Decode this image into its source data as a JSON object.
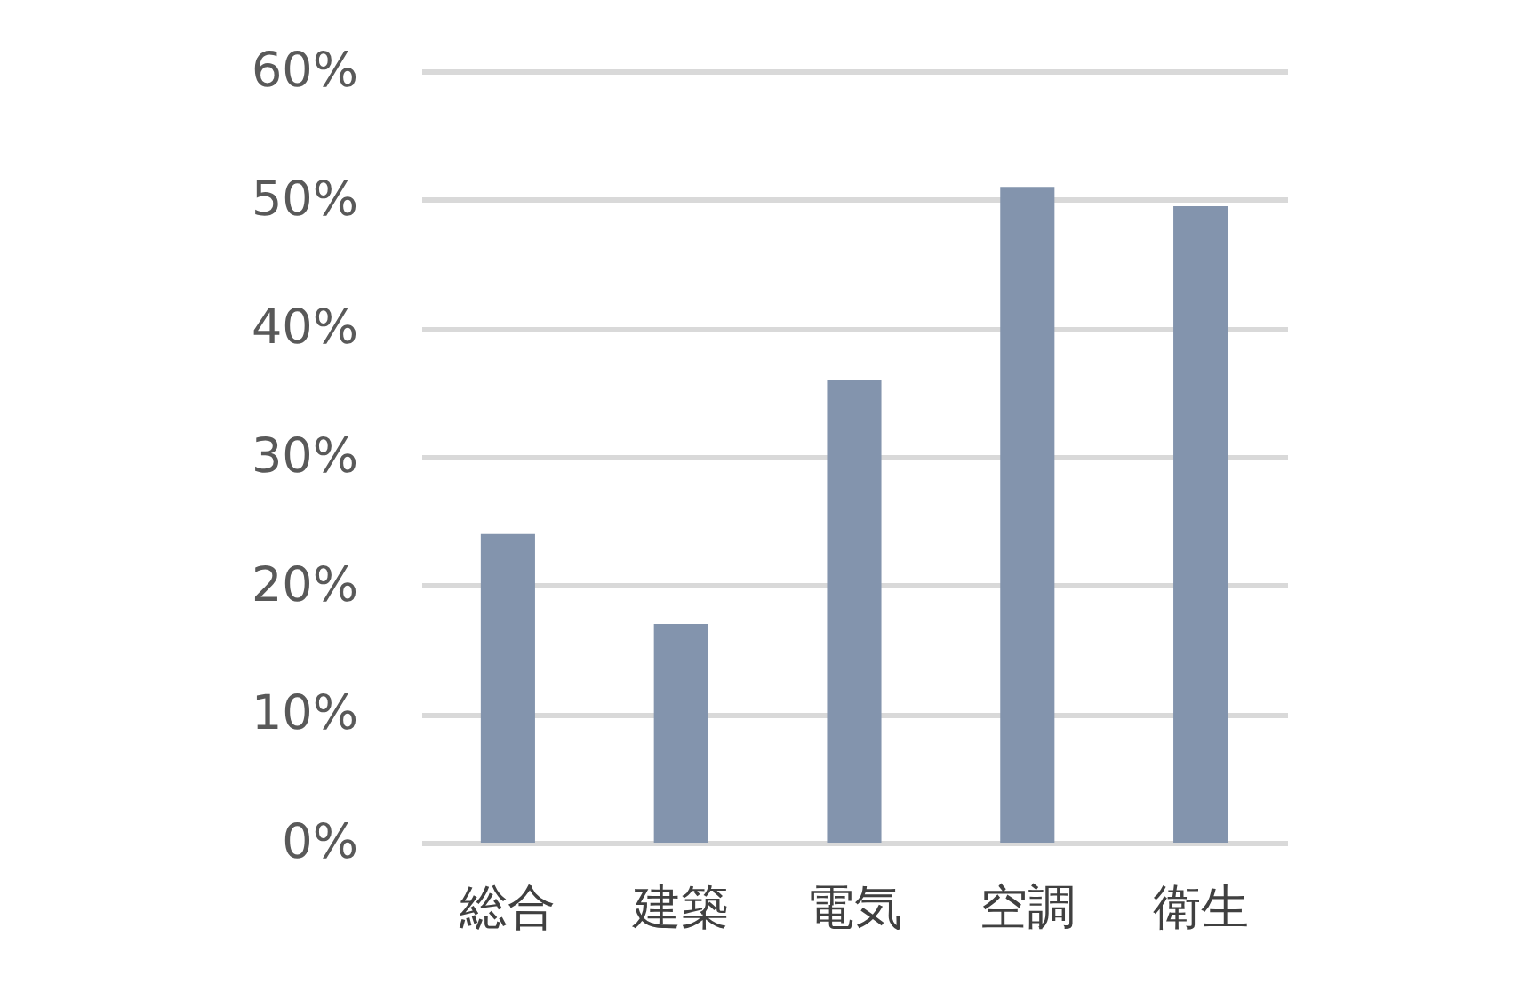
{
  "chart_data": {
    "type": "bar",
    "categories": [
      "総合",
      "建築",
      "電気",
      "空調",
      "衛生"
    ],
    "values": [
      24,
      17,
      36,
      51,
      49.5
    ],
    "color": "#8394ad",
    "ylim": [
      0,
      60
    ],
    "yticks": [
      {
        "value": 0,
        "label": "0%"
      },
      {
        "value": 10,
        "label": "10%"
      },
      {
        "value": 20,
        "label": "20%"
      },
      {
        "value": 30,
        "label": "30%"
      },
      {
        "value": 40,
        "label": "40%"
      },
      {
        "value": 50,
        "label": "50%"
      },
      {
        "value": 60,
        "label": "60%"
      }
    ],
    "grid": "y"
  }
}
